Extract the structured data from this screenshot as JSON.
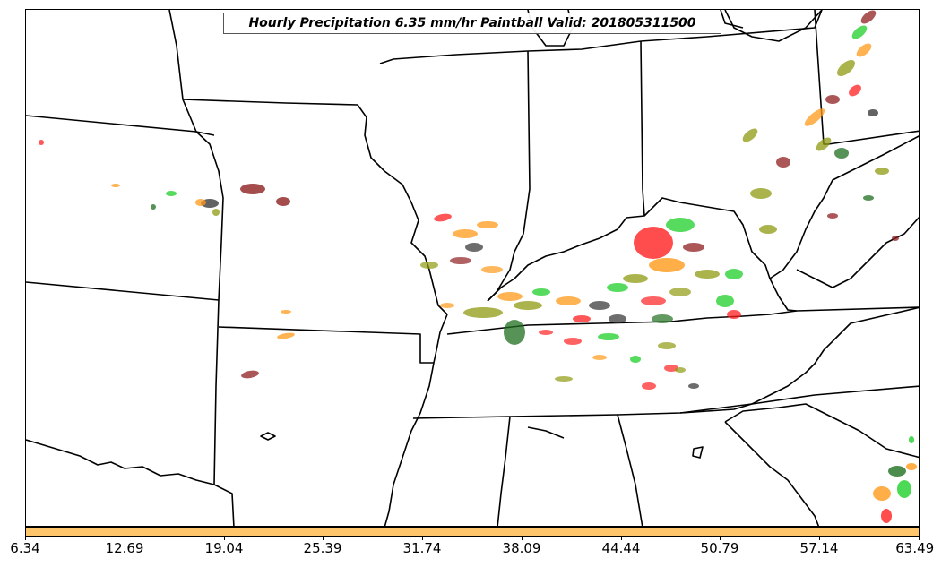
{
  "title": "Hourly Precipitation 6.35 mm/hr Paintball Valid: 201805311500",
  "colorbar": {
    "color": "#ffc56b",
    "tick_labels": [
      "6.34",
      "12.69",
      "19.04",
      "25.39",
      "31.74",
      "38.09",
      "44.44",
      "50.79",
      "57.14",
      "63.49"
    ]
  },
  "colors": {
    "red": "#ff1f1f",
    "orange": "#ff9a1a",
    "green": "#1fcf2a",
    "dark_green": "#1f6f1f",
    "olive": "#8f9a10",
    "dark_red": "#8f1f1f",
    "dark_gray": "#2f2f2f"
  }
}
